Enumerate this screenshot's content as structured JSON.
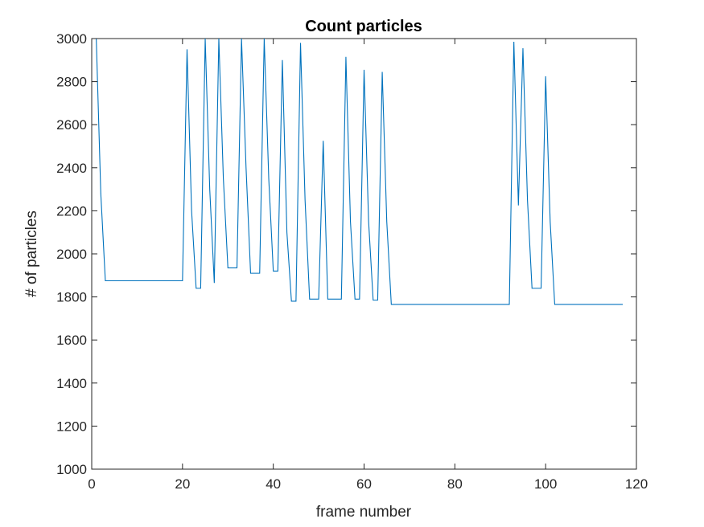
{
  "chart_data": {
    "type": "line",
    "title": "Count particles",
    "xlabel": "frame number",
    "ylabel": "# of particles",
    "xlim": [
      0,
      120
    ],
    "ylim": [
      1000,
      3000
    ],
    "xticks": [
      0,
      20,
      40,
      60,
      80,
      100,
      120
    ],
    "yticks": [
      1000,
      1200,
      1400,
      1600,
      1800,
      2000,
      2200,
      2400,
      2600,
      2800,
      3000
    ],
    "grid": false,
    "line_color": "#0072BD",
    "series": [
      {
        "x": [
          1,
          2,
          3,
          20,
          21,
          22,
          23,
          24,
          25,
          26,
          27,
          28,
          29,
          30,
          31,
          32,
          33,
          34,
          35,
          36,
          37,
          38,
          39,
          40,
          41,
          42,
          43,
          44,
          45,
          46,
          47,
          48,
          49,
          50,
          51,
          52,
          53,
          54,
          55,
          56,
          57,
          58,
          59,
          60,
          61,
          62,
          63,
          64,
          65,
          66,
          92,
          93,
          94,
          95,
          96,
          97,
          98,
          99,
          100,
          101,
          102,
          117
        ],
        "y": [
          3000,
          2280,
          1875,
          1875,
          2950,
          2200,
          1840,
          1840,
          3000,
          2300,
          1865,
          3000,
          2350,
          1935,
          1935,
          1935,
          3000,
          2400,
          1910,
          1910,
          1910,
          3000,
          2350,
          1920,
          1920,
          2900,
          2100,
          1780,
          1780,
          2980,
          2250,
          1790,
          1790,
          1790,
          2525,
          1790,
          1790,
          1790,
          1790,
          2915,
          2150,
          1790,
          1790,
          2855,
          2150,
          1785,
          1785,
          2845,
          2150,
          1765,
          1765,
          2985,
          2225,
          2955,
          2250,
          1840,
          1840,
          1840,
          2825,
          2150,
          1765,
          1765
        ]
      }
    ]
  }
}
